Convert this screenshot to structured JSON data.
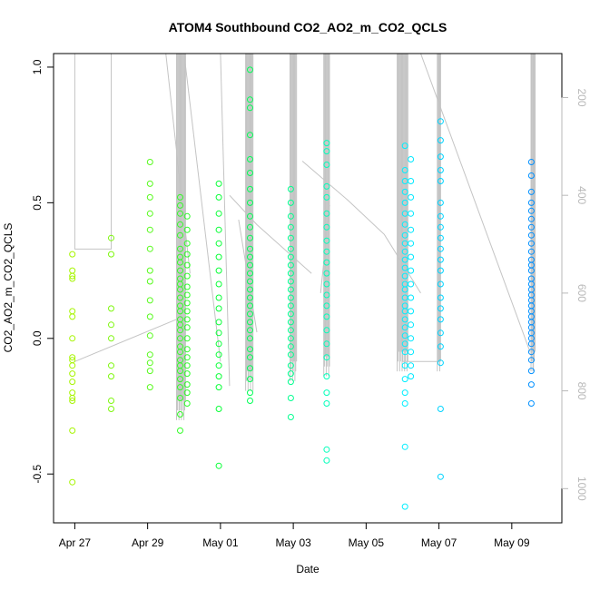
{
  "chart_data": {
    "type": "scatter",
    "title": "ATOM4 Southbound CO2_AO2_m_CO2_QCLS",
    "xlabel": "Date",
    "ylabel": "CO2_AO2_m_CO2_QCLS",
    "xlim": [
      "2016-04-26T10:00",
      "2016-05-10T09:00"
    ],
    "ylim": [
      -0.68,
      1.05
    ],
    "x_ticks": [
      {
        "date": "2016-04-27",
        "label": "Apr 27"
      },
      {
        "date": "2016-04-29",
        "label": "Apr 29"
      },
      {
        "date": "2016-05-01",
        "label": "May 01"
      },
      {
        "date": "2016-05-03",
        "label": "May 03"
      },
      {
        "date": "2016-05-05",
        "label": "May 05"
      },
      {
        "date": "2016-05-07",
        "label": "May 07"
      },
      {
        "date": "2016-05-09",
        "label": "May 09"
      }
    ],
    "y_ticks": [
      -0.5,
      0.0,
      0.5,
      1.0
    ],
    "y_tick_labels": [
      "-0.5",
      "0.0",
      "0.5",
      "1.0"
    ],
    "right_axis": {
      "description": "secondary axis for the grey line, reversed",
      "ticks": [
        200,
        400,
        600,
        800,
        1000
      ],
      "tick_labels": [
        "200",
        "400",
        "600",
        "800",
        "1000"
      ],
      "range_top": 110,
      "range_bottom": 1070,
      "color": "#b8b8b8"
    },
    "grid": false,
    "marker": "open-circle",
    "color_gradient_by_date": [
      "#a6f500",
      "#00ff3a",
      "#00ffff",
      "#0090ff"
    ],
    "clusters": [
      {
        "date": "2016-04-27T00:00",
        "values": [
          0.31,
          0.25,
          0.23,
          0.22,
          0.1,
          0.08,
          0.0,
          -0.07,
          -0.08,
          -0.1,
          -0.13,
          -0.16,
          -0.2,
          -0.22,
          -0.23,
          -0.34,
          -0.53
        ]
      },
      {
        "date": "2016-04-28T00:00",
        "values": [
          0.37,
          0.31,
          0.11,
          0.05,
          0.0,
          -0.1,
          -0.14,
          -0.23,
          -0.26
        ]
      },
      {
        "date": "2016-04-29T00:00",
        "values": [
          0.65,
          0.57,
          0.52,
          0.46,
          0.4,
          0.33,
          0.25,
          0.21,
          0.14,
          0.08,
          0.01,
          -0.06,
          -0.09,
          -0.12,
          -0.18
        ]
      },
      {
        "date": "2016-04-29T22:00",
        "values": [
          0.52,
          0.49,
          0.46,
          0.42,
          0.38,
          0.33,
          0.3,
          0.28,
          0.25,
          0.22,
          0.2,
          0.18,
          0.15,
          0.12,
          0.1,
          0.07,
          0.05,
          0.03,
          0.0,
          -0.03,
          -0.05,
          -0.08,
          -0.1,
          -0.12,
          -0.15,
          -0.18,
          -0.22,
          -0.28,
          -0.34
        ]
      },
      {
        "date": "2016-04-30T01:00",
        "values": [
          0.45,
          0.4,
          0.35,
          0.31,
          0.27,
          0.23,
          0.19,
          0.16,
          0.13,
          0.1,
          0.07,
          0.04,
          0.0,
          -0.04,
          -0.07,
          -0.1,
          -0.13,
          -0.17,
          -0.2,
          -0.24
        ]
      },
      {
        "date": "2016-05-01T00:00",
        "values": [
          0.57,
          0.52,
          0.46,
          0.4,
          0.35,
          0.3,
          0.25,
          0.2,
          0.15,
          0.11,
          0.06,
          0.02,
          -0.02,
          -0.06,
          -0.1,
          -0.14,
          -0.18,
          -0.26,
          -0.47
        ]
      },
      {
        "date": "2016-05-01T19:00",
        "values": [
          0.99,
          0.88,
          0.85,
          0.75,
          0.66,
          0.61,
          0.55,
          0.5,
          0.45,
          0.41,
          0.37,
          0.33,
          0.3,
          0.27,
          0.24,
          0.21,
          0.18,
          0.15,
          0.12,
          0.09,
          0.06,
          0.03,
          0.0,
          -0.04,
          -0.07,
          -0.11,
          -0.15,
          -0.2,
          -0.23
        ]
      },
      {
        "date": "2016-05-03T00:00",
        "values": [
          0.55,
          0.5,
          0.45,
          0.41,
          0.37,
          0.33,
          0.3,
          0.27,
          0.24,
          0.21,
          0.18,
          0.15,
          0.12,
          0.09,
          0.06,
          0.03,
          0.0,
          -0.03,
          -0.06,
          -0.1,
          -0.13,
          -0.16,
          -0.22,
          -0.29
        ]
      },
      {
        "date": "2016-05-03T22:00",
        "values": [
          0.72,
          0.69,
          0.64,
          0.56,
          0.52,
          0.46,
          0.41,
          0.36,
          0.32,
          0.28,
          0.24,
          0.2,
          0.16,
          0.12,
          0.08,
          0.03,
          -0.02,
          -0.07,
          -0.14,
          -0.2,
          -0.24,
          -0.41,
          -0.45
        ]
      },
      {
        "date": "2016-05-06T00:00",
        "values": [
          0.71,
          0.62,
          0.58,
          0.54,
          0.5,
          0.46,
          0.42,
          0.38,
          0.35,
          0.32,
          0.29,
          0.26,
          0.23,
          0.2,
          0.18,
          0.15,
          0.12,
          0.1,
          0.07,
          0.04,
          0.01,
          -0.02,
          -0.05,
          -0.1,
          -0.15,
          -0.2,
          -0.24,
          -0.4,
          -0.62
        ]
      },
      {
        "date": "2016-05-06T06:00",
        "values": [
          0.66,
          0.58,
          0.52,
          0.46,
          0.4,
          0.35,
          0.3,
          0.25,
          0.2,
          0.15,
          0.1,
          0.05,
          0.0,
          -0.05,
          -0.1,
          -0.14
        ]
      },
      {
        "date": "2016-05-07T00:00",
        "values": [
          0.8,
          0.73,
          0.67,
          0.62,
          0.58,
          0.5,
          0.45,
          0.41,
          0.37,
          0.33,
          0.29,
          0.25,
          0.2,
          0.15,
          0.11,
          0.07,
          0.02,
          -0.03,
          -0.09,
          -0.26,
          -0.51
        ]
      },
      {
        "date": "2016-05-09T14:00",
        "values": [
          0.65,
          0.6,
          0.54,
          0.5,
          0.47,
          0.44,
          0.41,
          0.38,
          0.35,
          0.32,
          0.29,
          0.27,
          0.25,
          0.22,
          0.2,
          0.18,
          0.16,
          0.14,
          0.12,
          0.1,
          0.08,
          0.06,
          0.04,
          0.02,
          0.0,
          -0.02,
          -0.05,
          -0.08,
          -0.12,
          -0.17,
          -0.24
        ]
      }
    ],
    "grey_line": {
      "axis": "right",
      "color": "#c4c4c4",
      "segments": [
        [
          [
            "2016-04-27T00:00",
            110
          ],
          [
            "2016-04-27T00:00",
            510
          ],
          [
            "2016-04-28T00:00",
            510
          ],
          [
            "2016-04-28T00:00",
            110
          ]
        ],
        [
          [
            "2016-04-29T12:00",
            110
          ],
          [
            "2016-04-30T04:00",
            560
          ]
        ],
        [
          [
            "2016-04-27T00:00",
            740
          ],
          [
            "2016-04-29T22:00",
            650
          ]
        ],
        [
          [
            "2016-04-30T00:00",
            110
          ],
          [
            "2016-05-01T00:00",
            740
          ]
        ],
        [
          [
            "2016-05-01T00:00",
            110
          ],
          [
            "2016-05-01T06:00",
            790
          ]
        ],
        [
          [
            "2016-05-01T06:00",
            400
          ],
          [
            "2016-05-02T00:00",
            460
          ],
          [
            "2016-05-03T12:00",
            560
          ]
        ],
        [
          [
            "2016-05-01T12:00",
            450
          ],
          [
            "2016-05-02T00:00",
            680
          ]
        ],
        [
          [
            "2016-05-03T06:00",
            330
          ],
          [
            "2016-05-04T12:00",
            410
          ],
          [
            "2016-05-05T12:00",
            480
          ],
          [
            "2016-05-06T12:00",
            600
          ]
        ],
        [
          [
            "2016-05-03T18:00",
            600
          ],
          [
            "2016-05-04T00:00",
            420
          ]
        ],
        [
          [
            "2016-05-06T00:00",
            110
          ],
          [
            "2016-05-06T00:00",
            740
          ],
          [
            "2016-05-07T00:00",
            740
          ],
          [
            "2016-05-07T00:00",
            110
          ]
        ],
        [
          [
            "2016-05-06T12:00",
            110
          ],
          [
            "2016-05-09T12:00",
            720
          ]
        ],
        [
          [
            "2016-05-09T14:00",
            110
          ],
          [
            "2016-05-09T14:00",
            760
          ]
        ]
      ],
      "dense_spikes": [
        {
          "date": "2016-04-29T22:00",
          "count": 12,
          "low": 110,
          "high": 860
        },
        {
          "date": "2016-05-01T19:00",
          "count": 10,
          "low": 110,
          "high": 800
        },
        {
          "date": "2016-05-03T00:00",
          "count": 9,
          "low": 110,
          "high": 780
        },
        {
          "date": "2016-05-03T22:00",
          "count": 8,
          "low": 110,
          "high": 770
        },
        {
          "date": "2016-05-06T00:00",
          "count": 14,
          "low": 110,
          "high": 760
        },
        {
          "date": "2016-05-07T00:00",
          "count": 5,
          "low": 110,
          "high": 760
        },
        {
          "date": "2016-05-09T14:00",
          "count": 6,
          "low": 110,
          "high": 760
        }
      ]
    }
  }
}
